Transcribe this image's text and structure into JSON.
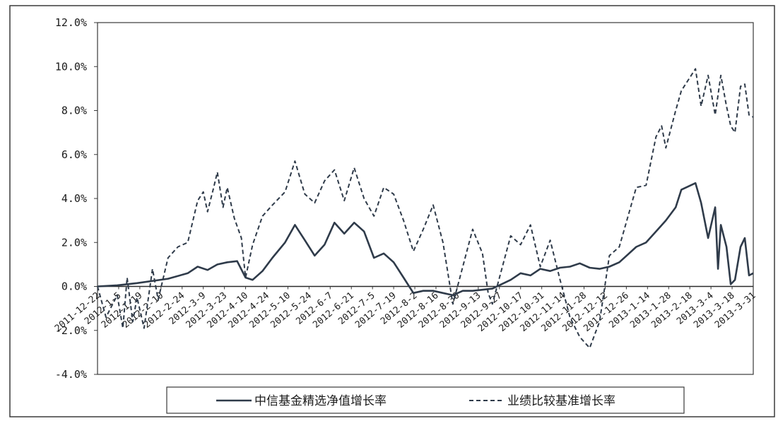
{
  "chart_data": {
    "type": "line",
    "title": "",
    "xlabel": "",
    "ylabel": "",
    "ylim": [
      -4.0,
      12.0
    ],
    "y_ticks": [
      "12.0%",
      "10.0%",
      "8.0%",
      "6.0%",
      "4.0%",
      "2.0%",
      "0.0%",
      "-2.0%",
      "-4.0%"
    ],
    "y_tick_values": [
      12,
      10,
      8,
      6,
      4,
      2,
      0,
      -2,
      -4
    ],
    "x_range": [
      "2011-12-22",
      "2013-3-31"
    ],
    "x_ticks": [
      "2011-12-22",
      "2012-1-5",
      "2012-1-19",
      "2012-2-10",
      "2012-2-24",
      "2012-3-9",
      "2012-3-23",
      "2012-4-10",
      "2012-4-24",
      "2012-5-10",
      "2012-5-24",
      "2012-6-7",
      "2012-6-21",
      "2012-7-5",
      "2012-7-19",
      "2012-8-2",
      "2012-8-16",
      "2012-8-30",
      "2012-9-13",
      "2012-9-27",
      "2012-10-17",
      "2012-10-31",
      "2012-11-14",
      "2012-11-28",
      "2012-12-12",
      "2012-12-26",
      "2013-1-14",
      "2013-1-28",
      "2013-2-18",
      "2013-3-4",
      "2013-3-18",
      "2013-3-31"
    ],
    "grid": false,
    "legend_position": "bottom",
    "series": [
      {
        "name": "中信基金精选净值增长率",
        "style": "solid",
        "color": "#2f3b4a",
        "points": [
          [
            "2011-12-22",
            0.0
          ],
          [
            "2012-1-5",
            0.05
          ],
          [
            "2012-1-19",
            0.15
          ],
          [
            "2012-2-10",
            0.35
          ],
          [
            "2012-2-24",
            0.6
          ],
          [
            "2012-3-2",
            0.9
          ],
          [
            "2012-3-9",
            0.75
          ],
          [
            "2012-3-16",
            1.0
          ],
          [
            "2012-3-23",
            1.1
          ],
          [
            "2012-3-30",
            1.15
          ],
          [
            "2012-4-5",
            0.4
          ],
          [
            "2012-4-10",
            0.3
          ],
          [
            "2012-4-17",
            0.7
          ],
          [
            "2012-4-24",
            1.3
          ],
          [
            "2012-5-3",
            2.0
          ],
          [
            "2012-5-10",
            2.8
          ],
          [
            "2012-5-17",
            2.1
          ],
          [
            "2012-5-24",
            1.4
          ],
          [
            "2012-5-31",
            1.9
          ],
          [
            "2012-6-7",
            2.9
          ],
          [
            "2012-6-14",
            2.4
          ],
          [
            "2012-6-21",
            2.9
          ],
          [
            "2012-6-28",
            2.5
          ],
          [
            "2012-7-5",
            1.3
          ],
          [
            "2012-7-12",
            1.5
          ],
          [
            "2012-7-19",
            1.1
          ],
          [
            "2012-7-26",
            0.4
          ],
          [
            "2012-8-2",
            -0.3
          ],
          [
            "2012-8-9",
            -0.2
          ],
          [
            "2012-8-16",
            -0.2
          ],
          [
            "2012-8-23",
            -0.3
          ],
          [
            "2012-8-30",
            -0.4
          ],
          [
            "2012-9-6",
            -0.2
          ],
          [
            "2012-9-13",
            -0.2
          ],
          [
            "2012-9-20",
            -0.15
          ],
          [
            "2012-9-27",
            -0.1
          ],
          [
            "2012-10-10",
            0.3
          ],
          [
            "2012-10-17",
            0.6
          ],
          [
            "2012-10-24",
            0.5
          ],
          [
            "2012-10-31",
            0.8
          ],
          [
            "2012-11-7",
            0.7
          ],
          [
            "2012-11-14",
            0.85
          ],
          [
            "2012-11-21",
            0.9
          ],
          [
            "2012-11-28",
            1.05
          ],
          [
            "2012-12-5",
            0.85
          ],
          [
            "2012-12-12",
            0.8
          ],
          [
            "2012-12-19",
            0.9
          ],
          [
            "2012-12-26",
            1.1
          ],
          [
            "2013-1-7",
            1.8
          ],
          [
            "2013-1-14",
            2.0
          ],
          [
            "2013-1-21",
            2.5
          ],
          [
            "2013-1-28",
            3.0
          ],
          [
            "2013-2-4",
            3.6
          ],
          [
            "2013-2-8",
            4.4
          ],
          [
            "2013-2-18",
            4.7
          ],
          [
            "2013-2-22",
            3.8
          ],
          [
            "2013-2-27",
            2.2
          ],
          [
            "2013-3-4",
            3.6
          ],
          [
            "2013-3-6",
            0.8
          ],
          [
            "2013-3-8",
            2.8
          ],
          [
            "2013-3-12",
            1.8
          ],
          [
            "2013-3-15",
            0.1
          ],
          [
            "2013-3-18",
            0.3
          ],
          [
            "2013-3-22",
            1.8
          ],
          [
            "2013-3-25",
            2.2
          ],
          [
            "2013-3-28",
            0.5
          ],
          [
            "2013-3-31",
            0.6
          ]
        ]
      },
      {
        "name": "业绩比较基准增长率",
        "style": "dashed",
        "color": "#2f3b4a",
        "points": [
          [
            "2011-12-22",
            0.0
          ],
          [
            "2011-12-28",
            -1.4
          ],
          [
            "2012-1-5",
            -0.4
          ],
          [
            "2012-1-9",
            -1.9
          ],
          [
            "2012-1-12",
            0.4
          ],
          [
            "2012-1-16",
            -1.6
          ],
          [
            "2012-1-19",
            -0.5
          ],
          [
            "2012-1-24",
            -1.9
          ],
          [
            "2012-1-30",
            0.8
          ],
          [
            "2012-2-3",
            -0.6
          ],
          [
            "2012-2-10",
            1.3
          ],
          [
            "2012-2-17",
            1.8
          ],
          [
            "2012-2-24",
            2.0
          ],
          [
            "2012-3-2",
            3.9
          ],
          [
            "2012-3-6",
            4.3
          ],
          [
            "2012-3-9",
            3.4
          ],
          [
            "2012-3-13",
            4.4
          ],
          [
            "2012-3-16",
            5.2
          ],
          [
            "2012-3-20",
            3.6
          ],
          [
            "2012-3-23",
            4.5
          ],
          [
            "2012-3-28",
            3.1
          ],
          [
            "2012-4-2",
            2.2
          ],
          [
            "2012-4-5",
            0.4
          ],
          [
            "2012-4-10",
            1.9
          ],
          [
            "2012-4-17",
            3.2
          ],
          [
            "2012-4-24",
            3.7
          ],
          [
            "2012-5-3",
            4.3
          ],
          [
            "2012-5-10",
            5.7
          ],
          [
            "2012-5-17",
            4.2
          ],
          [
            "2012-5-24",
            3.8
          ],
          [
            "2012-5-31",
            4.8
          ],
          [
            "2012-6-7",
            5.3
          ],
          [
            "2012-6-14",
            3.9
          ],
          [
            "2012-6-21",
            5.4
          ],
          [
            "2012-6-28",
            4.0
          ],
          [
            "2012-7-5",
            3.2
          ],
          [
            "2012-7-12",
            4.5
          ],
          [
            "2012-7-19",
            4.2
          ],
          [
            "2012-7-26",
            3.0
          ],
          [
            "2012-8-2",
            1.6
          ],
          [
            "2012-8-9",
            2.6
          ],
          [
            "2012-8-16",
            3.7
          ],
          [
            "2012-8-23",
            2.0
          ],
          [
            "2012-8-30",
            -0.8
          ],
          [
            "2012-9-6",
            0.9
          ],
          [
            "2012-9-13",
            2.6
          ],
          [
            "2012-9-20",
            1.5
          ],
          [
            "2012-9-24",
            -0.3
          ],
          [
            "2012-9-27",
            -0.8
          ],
          [
            "2012-10-10",
            2.3
          ],
          [
            "2012-10-17",
            1.9
          ],
          [
            "2012-10-24",
            2.8
          ],
          [
            "2012-10-31",
            0.9
          ],
          [
            "2012-11-7",
            2.1
          ],
          [
            "2012-11-14",
            0.3
          ],
          [
            "2012-11-21",
            -1.4
          ],
          [
            "2012-11-28",
            -2.3
          ],
          [
            "2012-12-5",
            -2.8
          ],
          [
            "2012-12-12",
            -1.6
          ],
          [
            "2012-12-19",
            1.4
          ],
          [
            "2012-12-26",
            1.8
          ],
          [
            "2013-1-7",
            4.5
          ],
          [
            "2013-1-14",
            4.6
          ],
          [
            "2013-1-21",
            6.8
          ],
          [
            "2013-1-25",
            7.3
          ],
          [
            "2013-1-28",
            6.3
          ],
          [
            "2013-2-4",
            8.0
          ],
          [
            "2013-2-8",
            8.9
          ],
          [
            "2013-2-18",
            9.9
          ],
          [
            "2013-2-22",
            8.2
          ],
          [
            "2013-2-27",
            9.6
          ],
          [
            "2013-3-4",
            7.8
          ],
          [
            "2013-3-8",
            9.6
          ],
          [
            "2013-3-12",
            8.2
          ],
          [
            "2013-3-15",
            7.3
          ],
          [
            "2013-3-18",
            7.0
          ],
          [
            "2013-3-22",
            9.1
          ],
          [
            "2013-3-25",
            9.2
          ],
          [
            "2013-3-28",
            7.8
          ],
          [
            "2013-3-31",
            7.7
          ]
        ]
      }
    ]
  }
}
